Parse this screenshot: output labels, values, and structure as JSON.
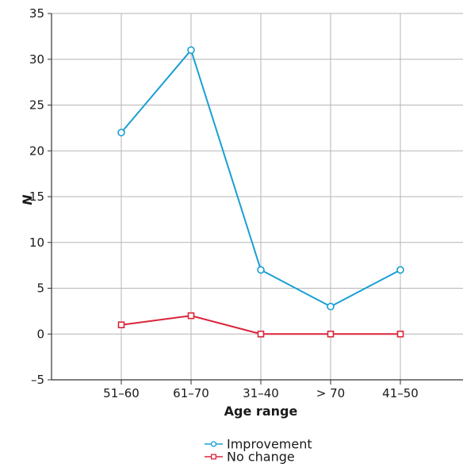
{
  "chart_data": {
    "type": "line",
    "title": "",
    "xlabel": "Age range",
    "ylabel": "N",
    "categories": [
      "51–60",
      "61–70",
      "31–40",
      "> 70",
      "41–50"
    ],
    "ylim": [
      -5,
      35
    ],
    "yticks": [
      -5,
      0,
      5,
      10,
      15,
      20,
      25,
      30,
      35
    ],
    "ytick_labels": [
      "–5",
      "0",
      "5",
      "10",
      "15",
      "20",
      "25",
      "30",
      "35"
    ],
    "grid": true,
    "legend_position": "bottom-center",
    "series": [
      {
        "name": "Improvement",
        "values": [
          22,
          31,
          7,
          3,
          7
        ],
        "color": "#1a9fd4",
        "marker": "circle"
      },
      {
        "name": "No change",
        "values": [
          1,
          2,
          0,
          0,
          0
        ],
        "color": "#d9263a",
        "marker": "square"
      }
    ]
  }
}
